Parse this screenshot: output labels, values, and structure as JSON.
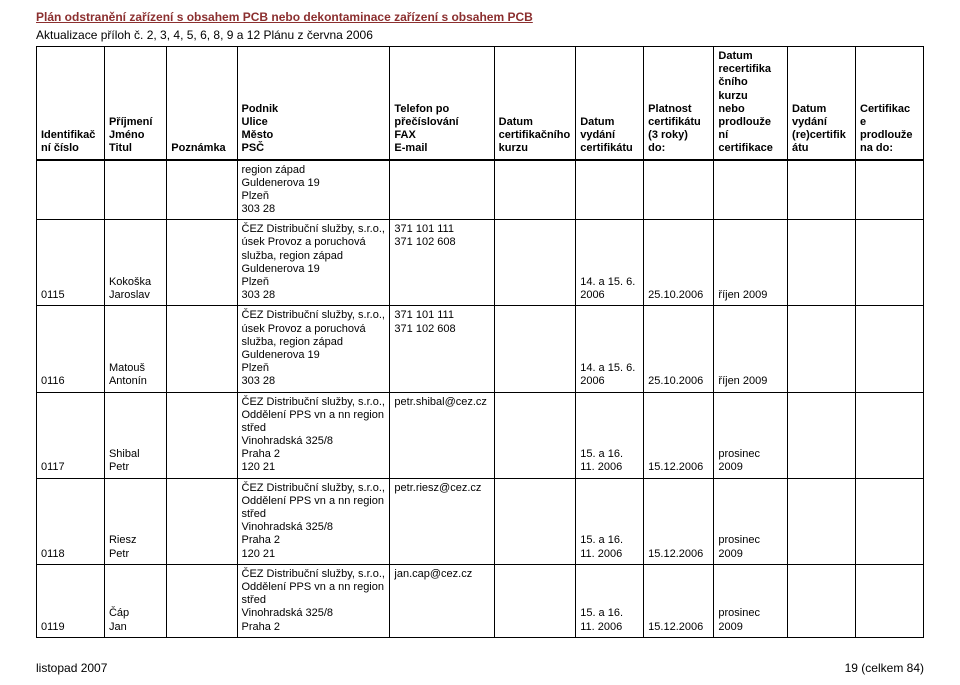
{
  "page": {
    "title": "Plán odstranění zařízení s obsahem PCB nebo dekontaminace zařízení s obsahem PCB",
    "subtitle": "Aktualizace příloh č. 2, 3, 4, 5, 6, 8, 9 a 12 Plánu z června 2006",
    "footer_left": "listopad 2007",
    "footer_right": "19 (celkem 84)"
  },
  "headers": {
    "c1": "Identifikač\nní číslo",
    "c2": "Příjmení\nJméno\nTitul",
    "c3": "Poznámka",
    "c4": "Podnik\nUlice\nMěsto\nPSČ",
    "c5": "Telefon po\npřečíslování\nFAX\nE-mail",
    "c6": "Datum\ncertifikačního\nkurzu",
    "c7": "Datum\nvydání\ncertifikátu",
    "c8": "Platnost\ncertifikátu\n(3 roky)\ndo:",
    "c9": "Datum\nrecertifika\nčního\nkurzu\nnebo\nprodlouže\nní\ncertifikace",
    "c10": "Datum\nvydání\n(re)certifik\nátu",
    "c11": "Certifikac\ne\nprodlouže\nna do:"
  },
  "rows": [
    {
      "c1": "",
      "c2": "",
      "c3": "",
      "c4": "region západ\nGuldenerova 19\nPlzeň\n303 28",
      "c5": "",
      "c6": "",
      "c7": "",
      "c8": "",
      "c9": "",
      "c10": "",
      "c11": ""
    },
    {
      "c1": "0115",
      "c2": "Kokoška\nJaroslav",
      "c3": "",
      "c4": "ČEZ Distribuční služby, s.r.o., úsek Provoz a poruchová služba, region západ\nGuldenerova 19\nPlzeň\n303 28",
      "c5": "371 101 111\n371 102 608",
      "c6": "",
      "c7": "14. a 15. 6. 2006",
      "c8": "25.10.2006",
      "c9": "říjen 2009",
      "c10": "",
      "c11": ""
    },
    {
      "c1": "0116",
      "c2": "Matouš\nAntonín",
      "c3": "",
      "c4": "ČEZ Distribuční služby, s.r.o., úsek Provoz a poruchová služba, region západ\nGuldenerova 19\nPlzeň\n303 28",
      "c5": "371 101 111\n371 102 608",
      "c6": "",
      "c7": "14. a 15. 6. 2006",
      "c8": "25.10.2006",
      "c9": "říjen 2009",
      "c10": "",
      "c11": ""
    },
    {
      "c1": "0117",
      "c2": "Shibal\nPetr",
      "c3": "",
      "c4": "ČEZ Distribuční služby, s.r.o., Oddělení PPS vn a nn region střed\nVinohradská 325/8\nPraha 2\n120 21",
      "c5": "petr.shibal@cez.cz",
      "c6": "",
      "c7": "15. a 16. 11. 2006",
      "c8": "15.12.2006",
      "c9": "prosinec 2009",
      "c10": "",
      "c11": ""
    },
    {
      "c1": "0118",
      "c2": "Riesz\nPetr",
      "c3": "",
      "c4": "ČEZ Distribuční služby, s.r.o., Oddělení PPS vn a nn region střed\nVinohradská 325/8\nPraha 2\n120 21",
      "c5": "petr.riesz@cez.cz",
      "c6": "",
      "c7": "15. a 16. 11. 2006",
      "c8": "15.12.2006",
      "c9": "prosinec 2009",
      "c10": "",
      "c11": ""
    },
    {
      "c1": "0119",
      "c2": "Čáp\nJan",
      "c3": "",
      "c4": "ČEZ Distribuční služby, s.r.o., Oddělení PPS vn a nn region střed\nVinohradská 325/8\nPraha 2",
      "c5": "jan.cap@cez.cz",
      "c6": "",
      "c7": "15. a 16. 11. 2006",
      "c8": "15.12.2006",
      "c9": "prosinec 2009",
      "c10": "",
      "c11": ""
    }
  ]
}
